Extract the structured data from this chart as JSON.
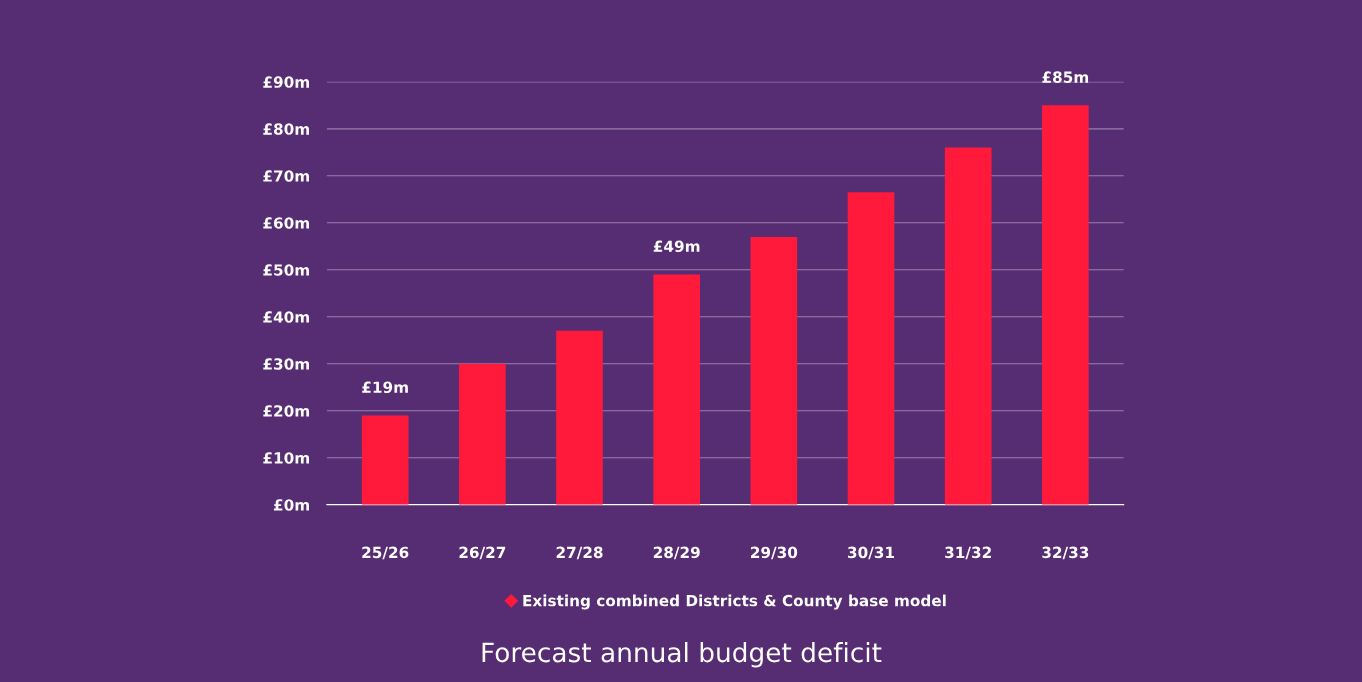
{
  "chart_data": {
    "type": "bar",
    "title": "Forecast annual budget deficit",
    "categories": [
      "25/26",
      "26/27",
      "27/28",
      "28/29",
      "29/30",
      "30/31",
      "31/32",
      "32/33"
    ],
    "series": [
      {
        "name": "Existing combined Districts & County base model",
        "color": "#ff1a3c",
        "values": [
          19,
          30,
          37,
          49,
          57,
          66.5,
          76,
          85
        ],
        "value_labels": [
          "£19m",
          null,
          null,
          "£49m",
          null,
          null,
          null,
          "£85m"
        ]
      }
    ],
    "ylim": [
      0,
      90
    ],
    "yticks": [
      {
        "value": 0,
        "label": "£0m"
      },
      {
        "value": 10,
        "label": "£10m"
      },
      {
        "value": 20,
        "label": "£20m"
      },
      {
        "value": 30,
        "label": "£30m"
      },
      {
        "value": 40,
        "label": "£40m"
      },
      {
        "value": 50,
        "label": "£50m"
      },
      {
        "value": 60,
        "label": "£60m"
      },
      {
        "value": 70,
        "label": "£70m"
      },
      {
        "value": 80,
        "label": "£80m"
      },
      {
        "value": 90,
        "label": "£90m"
      }
    ],
    "grid": "y",
    "legend": "bottom",
    "marker": "diamond"
  }
}
